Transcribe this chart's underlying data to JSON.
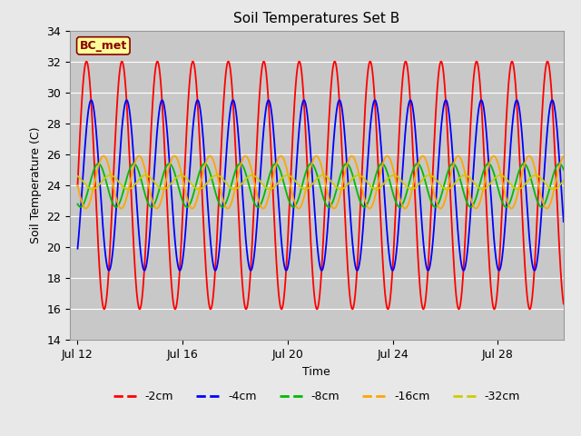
{
  "title": "Soil Temperatures Set B",
  "xlabel": "Time",
  "ylabel": "Soil Temperature (C)",
  "ylim": [
    14,
    34
  ],
  "yticks": [
    14,
    16,
    18,
    20,
    22,
    24,
    26,
    28,
    30,
    32,
    34
  ],
  "x_start_day": 12,
  "x_end_day": 30.5,
  "xlim_left": 11.7,
  "xlim_right": 30.5,
  "x_tick_days": [
    12,
    16,
    20,
    24,
    28
  ],
  "x_tick_labels": [
    "Jul 12",
    "Jul 16",
    "Jul 20",
    "Jul 24",
    "Jul 28"
  ],
  "annotation_text": "BC_met",
  "annotation_color": "#8B0000",
  "annotation_bg": "#FFFF99",
  "fig_bg_color": "#E8E8E8",
  "plot_bg_color": "#C8C8C8",
  "series": [
    {
      "label": "-2cm",
      "color": "#FF0000",
      "mean": 24.0,
      "amplitude": 8.0,
      "period": 1.35,
      "phase_days": 0.0,
      "linewidth": 1.3
    },
    {
      "label": "-4cm",
      "color": "#0000FF",
      "mean": 24.0,
      "amplitude": 5.5,
      "period": 1.35,
      "phase_days": 0.18,
      "linewidth": 1.3
    },
    {
      "label": "-8cm",
      "color": "#00BB00",
      "mean": 24.0,
      "amplitude": 1.4,
      "period": 1.35,
      "phase_days": 0.45,
      "linewidth": 1.3
    },
    {
      "label": "-16cm",
      "color": "#FFA500",
      "mean": 24.2,
      "amplitude": 1.7,
      "period": 1.35,
      "phase_days": 0.65,
      "linewidth": 1.3
    },
    {
      "label": "-32cm",
      "color": "#CCCC00",
      "mean": 24.2,
      "amplitude": 0.45,
      "period": 1.35,
      "phase_days": 0.9,
      "linewidth": 1.3
    }
  ],
  "grid_color": "#FFFFFF",
  "legend_ncol": 5
}
